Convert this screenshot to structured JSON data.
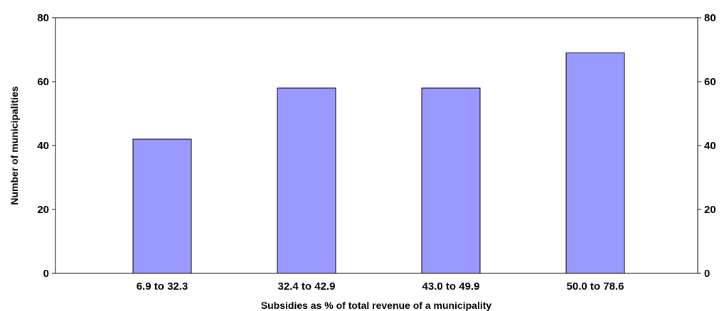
{
  "chart_data": {
    "type": "bar",
    "title": "",
    "xlabel": "Subsidies as % of total revenue of a municipality",
    "ylabel": "Number of municipalities",
    "categories": [
      "6.9 to 32.3",
      "32.4 to 42.9",
      "43.0 to 49.9",
      "50.0 to 78.6"
    ],
    "values": [
      42,
      58,
      58,
      69
    ],
    "ylim": [
      0,
      80
    ],
    "yticks": [
      0,
      20,
      40,
      60,
      80
    ],
    "secondary_y_axis": true,
    "grid": false,
    "legend": "none",
    "bar_color": "#9999ff",
    "bar_edge_color": "#000000"
  }
}
